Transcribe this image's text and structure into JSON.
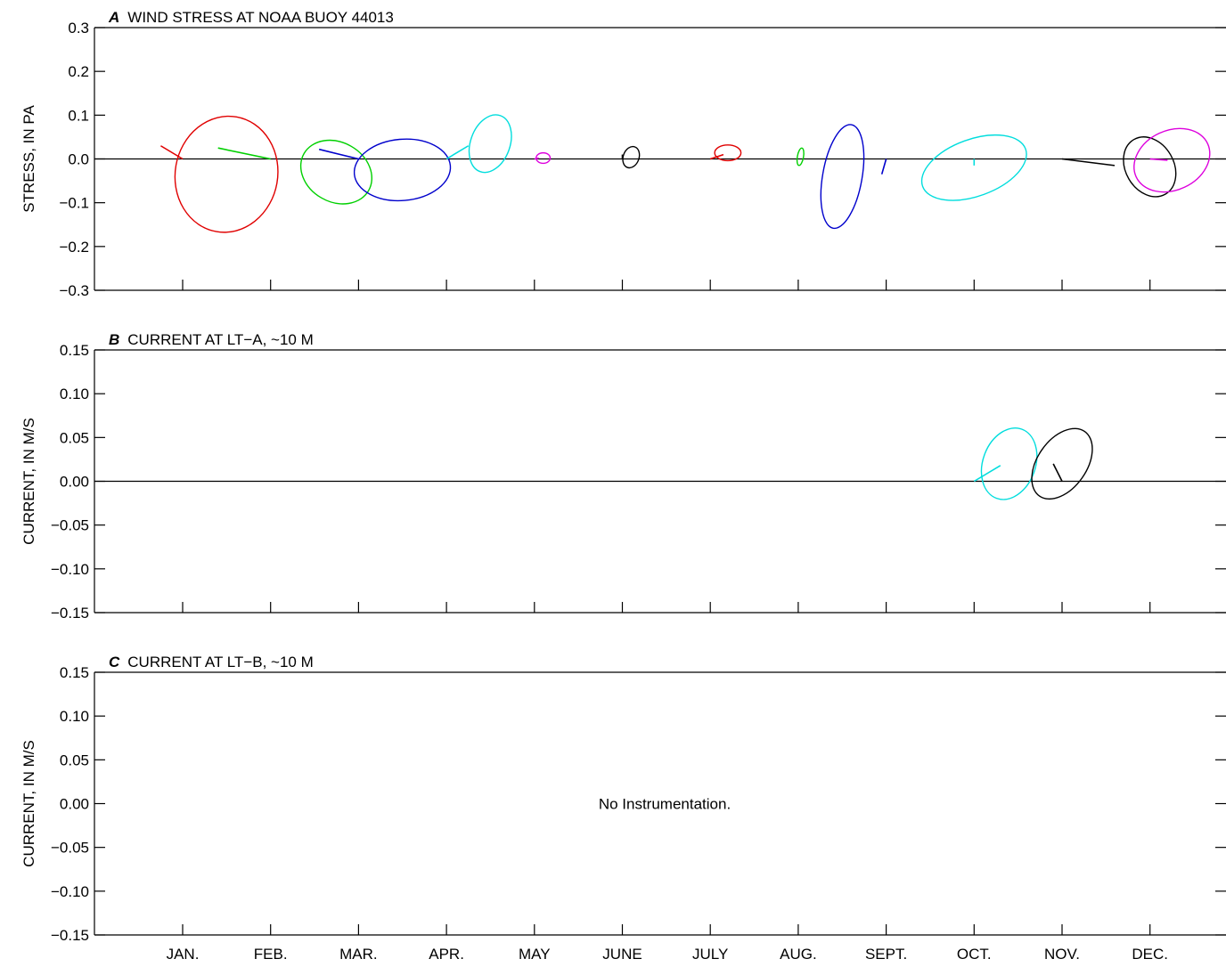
{
  "chart_data": [
    {
      "type": "other",
      "panel_letter": "A",
      "title": "WIND STRESS AT NOAA BUOY 44013",
      "ylabel": "STRESS, IN PA",
      "ylim": [
        -0.3,
        0.3
      ],
      "yticks": [
        "0.3",
        "0.2",
        "0.1",
        "0.0",
        "−0.1",
        "−0.2",
        "−0.3"
      ],
      "ytick_values": [
        0.3,
        0.2,
        0.1,
        0.0,
        -0.1,
        -0.2,
        -0.3
      ],
      "zero_line": true,
      "note": "",
      "ellipses": [
        {
          "month": 0,
          "center": [
            0.1,
            -0.035
          ],
          "a": 0.133,
          "b": 0.117,
          "angle": 80,
          "mean": [
            -0.05,
            0.03
          ],
          "color": "#e00000"
        },
        {
          "month": 1,
          "center": [
            0.15,
            -0.03
          ],
          "a": 0.085,
          "b": 0.068,
          "angle": -30,
          "mean": [
            -0.12,
            0.025
          ],
          "color": "#00d000"
        },
        {
          "month": 2,
          "center": [
            0.1,
            -0.025
          ],
          "a": 0.11,
          "b": 0.07,
          "angle": 5,
          "mean": [
            -0.09,
            0.022
          ],
          "color": "#0000cc"
        },
        {
          "month": 3,
          "center": [
            0.1,
            0.035
          ],
          "a": 0.068,
          "b": 0.045,
          "angle": 70,
          "mean": [
            0.05,
            0.03
          ],
          "color": "#00dddd"
        },
        {
          "month": 4,
          "center": [
            0.02,
            0.002
          ],
          "a": 0.016,
          "b": 0.012,
          "angle": 0,
          "mean": [
            0.01,
            0.002
          ],
          "color": "#dd00dd"
        },
        {
          "month": 5,
          "center": [
            0.02,
            0.004
          ],
          "a": 0.025,
          "b": 0.018,
          "angle": 70,
          "mean": [
            0.0,
            0.01
          ],
          "color": "#000000"
        },
        {
          "month": 6,
          "center": [
            0.04,
            0.014
          ],
          "a": 0.03,
          "b": 0.018,
          "angle": 0,
          "mean": [
            0.03,
            0.01
          ],
          "color": "#e00000"
        },
        {
          "month": 7,
          "center": [
            0.005,
            0.005
          ],
          "a": 0.02,
          "b": 0.007,
          "angle": 80,
          "mean": [
            0.0,
            0.0
          ],
          "color": "#00d000"
        },
        {
          "month": 8,
          "center": [
            -0.1,
            -0.04
          ],
          "a": 0.12,
          "b": 0.045,
          "angle": 80,
          "mean": [
            -0.01,
            -0.035
          ],
          "color": "#0000cc"
        },
        {
          "month": 9,
          "center": [
            0.0,
            -0.02
          ],
          "a": 0.125,
          "b": 0.065,
          "angle": 20,
          "mean": [
            0.0,
            -0.015
          ],
          "color": "#00dddd"
        },
        {
          "month": 10,
          "center": [
            0.2,
            -0.018
          ],
          "a": 0.072,
          "b": 0.055,
          "angle": -60,
          "mean": [
            0.12,
            -0.015
          ],
          "color": "#000000"
        },
        {
          "month": 11,
          "center": [
            0.05,
            -0.003
          ],
          "a": 0.09,
          "b": 0.068,
          "angle": 25,
          "mean": [
            0.04,
            -0.003
          ],
          "color": "#dd00dd"
        }
      ]
    },
    {
      "type": "other",
      "panel_letter": "B",
      "title": "CURRENT AT LT−A, ~10 M",
      "ylabel": "CURRENT, IN M/S",
      "ylim": [
        -0.15,
        0.15
      ],
      "yticks": [
        "0.15",
        "0.10",
        "0.05",
        "0.00",
        "−0.05",
        "−0.10",
        "−0.15"
      ],
      "ytick_values": [
        0.15,
        0.1,
        0.05,
        0.0,
        -0.05,
        -0.1,
        -0.15
      ],
      "zero_line": true,
      "note": "",
      "ellipses": [
        {
          "month": 9,
          "center": [
            0.04,
            0.02
          ],
          "a": 0.042,
          "b": 0.03,
          "angle": 70,
          "mean": [
            0.03,
            0.018
          ],
          "color": "#00dddd"
        },
        {
          "month": 10,
          "center": [
            0.0,
            0.02
          ],
          "a": 0.045,
          "b": 0.028,
          "angle": 55,
          "mean": [
            -0.01,
            0.02
          ],
          "color": "#000000"
        }
      ]
    },
    {
      "type": "other",
      "panel_letter": "C",
      "title": "CURRENT AT LT−B, ~10 M",
      "ylabel": "CURRENT, IN M/S",
      "ylim": [
        -0.15,
        0.15
      ],
      "yticks": [
        "0.15",
        "0.10",
        "0.05",
        "0.00",
        "−0.05",
        "−0.10",
        "−0.15"
      ],
      "ytick_values": [
        0.15,
        0.1,
        0.05,
        0.0,
        -0.05,
        -0.1,
        -0.15
      ],
      "zero_line": false,
      "note": "No Instrumentation.",
      "ellipses": []
    }
  ],
  "months": [
    "JAN.",
    "FEB.",
    "MAR.",
    "APR.",
    "MAY",
    "JUNE",
    "JULY",
    "AUG.",
    "SEPT.",
    "OCT.",
    "NOV.",
    "DEC."
  ]
}
